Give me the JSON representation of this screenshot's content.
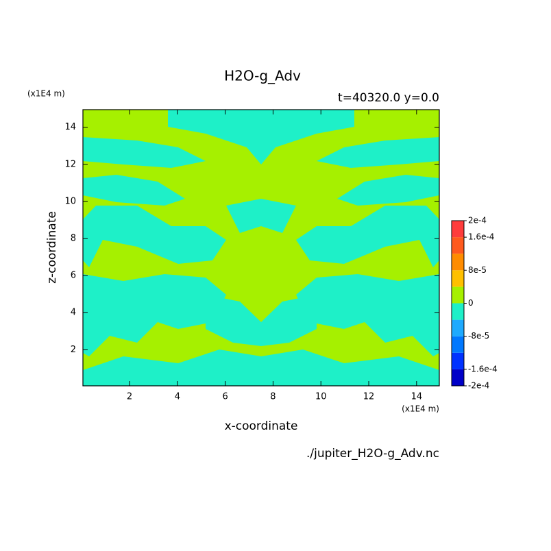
{
  "chart_data": {
    "type": "contour",
    "title": "H2O-g_Adv",
    "subtitle": "t=40320.0 y=0.0",
    "x_label": "x-coordinate",
    "y_label": "z-coordinate",
    "x_unit": "(x1E4 m)",
    "y_unit": "(x1E4 m)",
    "source": "./jupiter_H2O-g_Adv.nc",
    "xlim": [
      0.05,
      14.95
    ],
    "ylim": [
      0.05,
      14.95
    ],
    "xticks": [
      2,
      4,
      6,
      8,
      10,
      12,
      14
    ],
    "yticks": [
      2,
      4,
      6,
      8,
      10,
      12,
      14
    ],
    "colorbar": {
      "clim": [
        -0.0002,
        0.0002
      ],
      "colors": [
        "#0000c8",
        "#0032ff",
        "#0078ff",
        "#1eaaff",
        "#1ef0c8",
        "#a6f000",
        "#ffc000",
        "#ff8c00",
        "#ff5a1e",
        "#ff3c3c"
      ],
      "ticks": [
        {
          "value": -0.0002,
          "label": "-2e-4"
        },
        {
          "value": -0.00016,
          "label": "-1.6e-4"
        },
        {
          "value": -8e-05,
          "label": "-8e-5"
        },
        0,
        {
          "value": 8e-05,
          "label": "8e-5"
        },
        {
          "value": 0.00016,
          "label": "1.6e-4"
        },
        {
          "value": 0.0002,
          "label": "2e-4"
        }
      ]
    }
  }
}
